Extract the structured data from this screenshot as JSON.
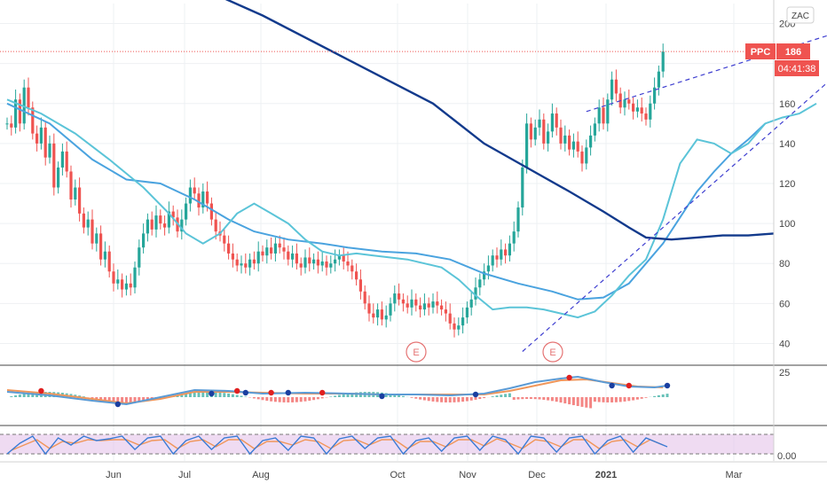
{
  "symbol_badge": "ZAC",
  "price_tag": {
    "symbol": "PPC",
    "last": "186",
    "countdown": "04:41:38",
    "color": "#ef5350"
  },
  "colors": {
    "up": "#26a69a",
    "down": "#ef5350",
    "sma_fast": "#5bc4d8",
    "sma_mid": "#4aa3df",
    "sma_slow": "#123a8c",
    "channel": "#3f3fd0",
    "earnings": "#e57373",
    "macd_line": "#5b9bd5",
    "signal_line": "#f0965a",
    "stoch_band": "#e1bee7",
    "stoch_k": "#3a7bd5",
    "stoch_d": "#f0965a"
  },
  "chart_data": {
    "type": "candlestick",
    "y_axis": {
      "ticks": [
        40,
        60,
        80,
        100,
        120,
        140,
        160,
        180,
        200
      ],
      "min": 30,
      "max": 210
    },
    "x_axis": {
      "ticks": [
        "Jun",
        "Jul",
        "Aug",
        "Oct",
        "Nov",
        "Dec",
        "2021",
        "Mar"
      ]
    },
    "last_price": 186,
    "earnings_markers": [
      "E",
      "E"
    ],
    "macd_axis": {
      "ticks": [
        25
      ]
    },
    "stoch_axis": {
      "ticks": [
        "0.00"
      ]
    },
    "sma_fast": [
      [
        0,
        162
      ],
      [
        8,
        155
      ],
      [
        16,
        145
      ],
      [
        24,
        132
      ],
      [
        32,
        118
      ],
      [
        38,
        105
      ],
      [
        42,
        95
      ],
      [
        46,
        90
      ],
      [
        50,
        95
      ],
      [
        54,
        105
      ],
      [
        58,
        110
      ],
      [
        62,
        105
      ],
      [
        66,
        100
      ],
      [
        70,
        92
      ],
      [
        74,
        86
      ],
      [
        78,
        84
      ],
      [
        82,
        85
      ],
      [
        86,
        84
      ],
      [
        90,
        83
      ],
      [
        94,
        82
      ],
      [
        98,
        80
      ],
      [
        102,
        78
      ],
      [
        106,
        72
      ],
      [
        110,
        64
      ],
      [
        114,
        57
      ],
      [
        118,
        58
      ],
      [
        122,
        58
      ],
      [
        126,
        57
      ],
      [
        130,
        55
      ],
      [
        134,
        53
      ],
      [
        138,
        56
      ],
      [
        142,
        64
      ],
      [
        146,
        74
      ],
      [
        150,
        82
      ],
      [
        154,
        102
      ],
      [
        158,
        130
      ],
      [
        162,
        142
      ],
      [
        166,
        140
      ],
      [
        170,
        135
      ],
      [
        174,
        140
      ],
      [
        178,
        150
      ],
      [
        182,
        153
      ],
      [
        186,
        155
      ],
      [
        190,
        160
      ]
    ],
    "sma_mid": [
      [
        0,
        160
      ],
      [
        10,
        150
      ],
      [
        20,
        132
      ],
      [
        28,
        122
      ],
      [
        36,
        120
      ],
      [
        44,
        112
      ],
      [
        52,
        102
      ],
      [
        58,
        96
      ],
      [
        66,
        92
      ],
      [
        74,
        90
      ],
      [
        80,
        88
      ],
      [
        88,
        86
      ],
      [
        96,
        85
      ],
      [
        104,
        82
      ],
      [
        112,
        75
      ],
      [
        120,
        70
      ],
      [
        128,
        66
      ],
      [
        134,
        62
      ],
      [
        140,
        63
      ],
      [
        146,
        70
      ],
      [
        150,
        80
      ],
      [
        154,
        90
      ],
      [
        158,
        103
      ],
      [
        162,
        116
      ],
      [
        166,
        126
      ],
      [
        170,
        135
      ],
      [
        174,
        142
      ],
      [
        178,
        150
      ]
    ],
    "sma_slow": [
      [
        40,
        223
      ],
      [
        60,
        204
      ],
      [
        80,
        182
      ],
      [
        100,
        160
      ],
      [
        112,
        140
      ],
      [
        122,
        128
      ],
      [
        132,
        116
      ],
      [
        140,
        106
      ],
      [
        146,
        98
      ],
      [
        150,
        93
      ],
      [
        156,
        92
      ],
      [
        162,
        93
      ],
      [
        168,
        94
      ],
      [
        174,
        94
      ],
      [
        180,
        95
      ]
    ],
    "channel_lower": [
      [
        121,
        36
      ],
      [
        212,
        207
      ]
    ],
    "channel_upper": [
      [
        136,
        156
      ],
      [
        212,
        207
      ]
    ],
    "candles": [
      [
        0,
        150
      ],
      [
        1,
        148
      ],
      [
        2,
        162
      ],
      [
        3,
        150
      ],
      [
        4,
        168
      ],
      [
        5,
        158
      ],
      [
        6,
        145
      ],
      [
        7,
        140
      ],
      [
        8,
        148
      ],
      [
        9,
        133
      ],
      [
        10,
        140
      ],
      [
        11,
        118
      ],
      [
        12,
        128
      ],
      [
        13,
        136
      ],
      [
        14,
        126
      ],
      [
        15,
        112
      ],
      [
        16,
        118
      ],
      [
        17,
        105
      ],
      [
        18,
        98
      ],
      [
        19,
        102
      ],
      [
        20,
        90
      ],
      [
        21,
        95
      ],
      [
        22,
        82
      ],
      [
        23,
        86
      ],
      [
        24,
        76
      ],
      [
        25,
        70
      ],
      [
        26,
        72
      ],
      [
        27,
        67
      ],
      [
        28,
        70
      ],
      [
        29,
        68
      ],
      [
        30,
        78
      ],
      [
        31,
        88
      ],
      [
        32,
        95
      ],
      [
        33,
        102
      ],
      [
        34,
        97
      ],
      [
        35,
        104
      ],
      [
        36,
        100
      ],
      [
        37,
        98
      ],
      [
        38,
        106
      ],
      [
        39,
        103
      ],
      [
        40,
        96
      ],
      [
        41,
        102
      ],
      [
        42,
        110
      ],
      [
        43,
        118
      ],
      [
        44,
        115
      ],
      [
        45,
        108
      ],
      [
        46,
        116
      ],
      [
        47,
        110
      ],
      [
        48,
        102
      ],
      [
        49,
        96
      ],
      [
        50,
        94
      ],
      [
        51,
        90
      ],
      [
        52,
        85
      ],
      [
        53,
        82
      ],
      [
        54,
        79
      ],
      [
        55,
        80
      ],
      [
        56,
        78
      ],
      [
        57,
        82
      ],
      [
        58,
        80
      ],
      [
        59,
        86
      ],
      [
        60,
        84
      ],
      [
        61,
        88
      ],
      [
        62,
        85
      ],
      [
        63,
        90
      ],
      [
        64,
        88
      ],
      [
        65,
        86
      ],
      [
        66,
        82
      ],
      [
        67,
        85
      ],
      [
        68,
        80
      ],
      [
        69,
        78
      ],
      [
        70,
        83
      ],
      [
        71,
        80
      ],
      [
        72,
        82
      ],
      [
        73,
        79
      ],
      [
        74,
        81
      ],
      [
        75,
        78
      ],
      [
        76,
        80
      ],
      [
        77,
        82
      ],
      [
        78,
        84
      ],
      [
        79,
        81
      ],
      [
        80,
        79
      ],
      [
        81,
        76
      ],
      [
        82,
        72
      ],
      [
        83,
        66
      ],
      [
        84,
        60
      ],
      [
        85,
        55
      ],
      [
        86,
        53
      ],
      [
        87,
        57
      ],
      [
        88,
        52
      ],
      [
        89,
        54
      ],
      [
        90,
        60
      ],
      [
        91,
        65
      ],
      [
        92,
        62
      ],
      [
        93,
        60
      ],
      [
        94,
        58
      ],
      [
        95,
        62
      ],
      [
        96,
        59
      ],
      [
        97,
        57
      ],
      [
        98,
        60
      ],
      [
        99,
        58
      ],
      [
        100,
        61
      ],
      [
        101,
        59
      ],
      [
        102,
        57
      ],
      [
        103,
        55
      ],
      [
        104,
        50
      ],
      [
        105,
        47
      ],
      [
        106,
        49
      ],
      [
        107,
        53
      ],
      [
        108,
        58
      ],
      [
        109,
        62
      ],
      [
        110,
        68
      ],
      [
        111,
        72
      ],
      [
        112,
        76
      ],
      [
        113,
        79
      ],
      [
        114,
        84
      ],
      [
        115,
        82
      ],
      [
        116,
        87
      ],
      [
        117,
        84
      ],
      [
        118,
        90
      ],
      [
        119,
        96
      ],
      [
        120,
        108
      ],
      [
        121,
        128
      ],
      [
        122,
        150
      ],
      [
        123,
        142
      ],
      [
        124,
        148
      ],
      [
        125,
        152
      ],
      [
        126,
        140
      ],
      [
        127,
        146
      ],
      [
        128,
        155
      ],
      [
        129,
        148
      ],
      [
        130,
        140
      ],
      [
        131,
        144
      ],
      [
        132,
        137
      ],
      [
        133,
        141
      ],
      [
        134,
        136
      ],
      [
        135,
        130
      ],
      [
        136,
        138
      ],
      [
        137,
        144
      ],
      [
        138,
        150
      ],
      [
        139,
        158
      ],
      [
        140,
        150
      ],
      [
        141,
        162
      ],
      [
        142,
        172
      ],
      [
        143,
        165
      ],
      [
        144,
        158
      ],
      [
        145,
        162
      ],
      [
        146,
        160
      ],
      [
        147,
        156
      ],
      [
        148,
        158
      ],
      [
        149,
        155
      ],
      [
        150,
        152
      ],
      [
        151,
        160
      ],
      [
        152,
        168
      ],
      [
        153,
        176
      ],
      [
        154,
        186
      ]
    ],
    "macd": {
      "macd_line": [
        [
          0,
          42
        ],
        [
          10,
          46
        ],
        [
          20,
          52
        ],
        [
          28,
          56
        ],
        [
          36,
          48
        ],
        [
          44,
          40
        ],
        [
          52,
          41
        ],
        [
          60,
          44
        ],
        [
          70,
          43
        ],
        [
          80,
          44
        ],
        [
          88,
          45
        ],
        [
          96,
          45
        ],
        [
          104,
          46
        ],
        [
          112,
          44
        ],
        [
          118,
          38
        ],
        [
          124,
          31
        ],
        [
          130,
          27
        ],
        [
          134,
          25
        ],
        [
          140,
          31
        ],
        [
          146,
          36
        ],
        [
          152,
          37
        ],
        [
          155,
          35
        ]
      ],
      "signal_line": [
        [
          0,
          40
        ],
        [
          10,
          44
        ],
        [
          20,
          50
        ],
        [
          28,
          55
        ],
        [
          36,
          50
        ],
        [
          44,
          42
        ],
        [
          52,
          42
        ],
        [
          60,
          43
        ],
        [
          70,
          44
        ],
        [
          80,
          44
        ],
        [
          88,
          45
        ],
        [
          96,
          45
        ],
        [
          104,
          45
        ],
        [
          112,
          45
        ],
        [
          118,
          41
        ],
        [
          124,
          35
        ],
        [
          130,
          29
        ],
        [
          136,
          28
        ],
        [
          142,
          32
        ],
        [
          148,
          36
        ],
        [
          154,
          37
        ]
      ],
      "crossovers_red": [
        [
          8,
          41
        ],
        [
          54,
          41
        ],
        [
          62,
          43
        ],
        [
          74,
          43
        ],
        [
          132,
          26
        ],
        [
          146,
          35
        ]
      ],
      "crossovers_blue": [
        [
          26,
          56
        ],
        [
          48,
          44
        ],
        [
          56,
          43
        ],
        [
          66,
          43
        ],
        [
          88,
          47
        ],
        [
          110,
          45
        ],
        [
          142,
          35
        ],
        [
          155,
          35
        ]
      ]
    },
    "stochastic": {
      "k": [
        [
          0,
          30
        ],
        [
          3,
          18
        ],
        [
          6,
          10
        ],
        [
          9,
          30
        ],
        [
          12,
          12
        ],
        [
          15,
          20
        ],
        [
          18,
          10
        ],
        [
          21,
          15
        ],
        [
          24,
          13
        ],
        [
          27,
          10
        ],
        [
          30,
          25
        ],
        [
          33,
          12
        ],
        [
          36,
          10
        ],
        [
          39,
          30
        ],
        [
          42,
          15
        ],
        [
          45,
          10
        ],
        [
          48,
          25
        ],
        [
          51,
          12
        ],
        [
          54,
          10
        ],
        [
          57,
          30
        ],
        [
          60,
          15
        ],
        [
          63,
          12
        ],
        [
          66,
          26
        ],
        [
          69,
          10
        ],
        [
          72,
          12
        ],
        [
          75,
          30
        ],
        [
          78,
          13
        ],
        [
          81,
          10
        ],
        [
          84,
          24
        ],
        [
          87,
          12
        ],
        [
          90,
          10
        ],
        [
          93,
          30
        ],
        [
          96,
          15
        ],
        [
          99,
          12
        ],
        [
          102,
          27
        ],
        [
          105,
          12
        ],
        [
          108,
          10
        ],
        [
          111,
          26
        ],
        [
          114,
          10
        ],
        [
          117,
          14
        ],
        [
          120,
          30
        ],
        [
          123,
          10
        ],
        [
          126,
          12
        ],
        [
          129,
          28
        ],
        [
          132,
          12
        ],
        [
          135,
          10
        ],
        [
          138,
          30
        ],
        [
          141,
          15
        ],
        [
          144,
          10
        ],
        [
          147,
          28
        ],
        [
          150,
          12
        ],
        [
          153,
          18
        ],
        [
          155,
          22
        ]
      ],
      "d": [
        [
          1,
          26
        ],
        [
          4,
          20
        ],
        [
          7,
          14
        ],
        [
          10,
          24
        ],
        [
          13,
          16
        ],
        [
          16,
          18
        ],
        [
          19,
          14
        ],
        [
          22,
          15
        ],
        [
          25,
          14
        ],
        [
          28,
          14
        ],
        [
          31,
          20
        ],
        [
          34,
          15
        ],
        [
          37,
          14
        ],
        [
          40,
          24
        ],
        [
          43,
          16
        ],
        [
          46,
          14
        ],
        [
          49,
          22
        ],
        [
          52,
          14
        ],
        [
          55,
          14
        ],
        [
          58,
          24
        ],
        [
          61,
          16
        ],
        [
          64,
          16
        ],
        [
          67,
          20
        ],
        [
          70,
          14
        ],
        [
          73,
          16
        ],
        [
          76,
          24
        ],
        [
          79,
          15
        ],
        [
          82,
          14
        ],
        [
          85,
          20
        ],
        [
          88,
          14
        ],
        [
          91,
          14
        ],
        [
          94,
          24
        ],
        [
          97,
          16
        ],
        [
          100,
          16
        ],
        [
          103,
          22
        ],
        [
          106,
          14
        ],
        [
          109,
          14
        ],
        [
          112,
          21
        ],
        [
          115,
          13
        ],
        [
          118,
          18
        ],
        [
          121,
          24
        ],
        [
          124,
          14
        ],
        [
          127,
          16
        ],
        [
          130,
          22
        ],
        [
          133,
          14
        ],
        [
          136,
          14
        ],
        [
          139,
          24
        ],
        [
          142,
          16
        ],
        [
          145,
          14
        ],
        [
          148,
          22
        ],
        [
          151,
          14
        ],
        [
          154,
          20
        ]
      ]
    }
  }
}
